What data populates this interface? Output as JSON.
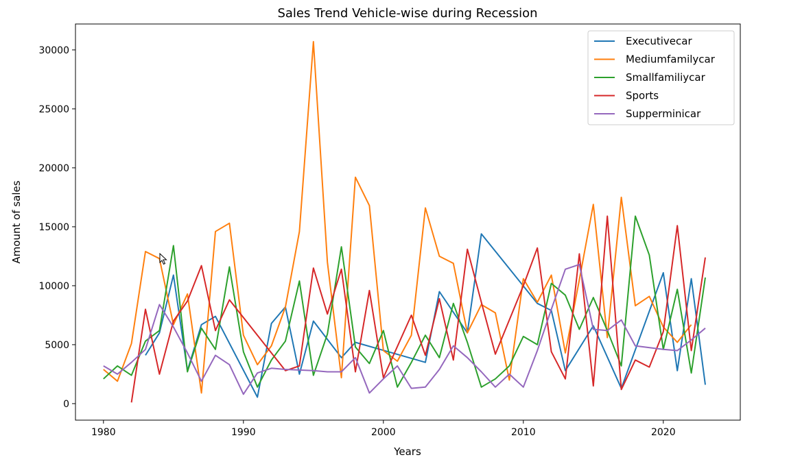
{
  "chart_data": {
    "type": "line",
    "title": "Sales Trend Vehicle-wise during Recession",
    "xlabel": "Years",
    "ylabel": "Amount of sales",
    "xlim": [
      1978,
      2025.5
    ],
    "ylim": [
      -1400,
      32200
    ],
    "xticks": [
      1980,
      1990,
      2000,
      2010,
      2020
    ],
    "yticks": [
      0,
      5000,
      10000,
      15000,
      20000,
      25000,
      30000
    ],
    "grid": false,
    "legend_position": "top-right",
    "series": [
      {
        "name": "Executivecar",
        "color": "#1f77b4",
        "points": [
          [
            1983,
            4100
          ],
          [
            1984,
            6000
          ],
          [
            1985,
            10900
          ],
          [
            1986,
            2800
          ],
          [
            1987,
            6700
          ],
          [
            1988,
            7400
          ],
          [
            1991,
            550
          ],
          [
            1992,
            6800
          ],
          [
            1993,
            8200
          ],
          [
            1994,
            2500
          ],
          [
            1995,
            7000
          ],
          [
            1997,
            3900
          ],
          [
            1998,
            5200
          ],
          [
            2003,
            3500
          ],
          [
            2004,
            9500
          ],
          [
            2006,
            6000
          ],
          [
            2007,
            14400
          ],
          [
            2011,
            8500
          ],
          [
            2012,
            7900
          ],
          [
            2013,
            2800
          ],
          [
            2015,
            6600
          ],
          [
            2017,
            1300
          ],
          [
            2020,
            11100
          ],
          [
            2021,
            2800
          ],
          [
            2022,
            10600
          ],
          [
            2023,
            1600
          ]
        ]
      },
      {
        "name": "Mediumfamilycar",
        "color": "#ff7f0e",
        "points": [
          [
            1980,
            2900
          ],
          [
            1981,
            1900
          ],
          [
            1982,
            5100
          ],
          [
            1983,
            12900
          ],
          [
            1984,
            12300
          ],
          [
            1985,
            6700
          ],
          [
            1986,
            9300
          ],
          [
            1987,
            900
          ],
          [
            1988,
            14600
          ],
          [
            1989,
            15300
          ],
          [
            1990,
            5800
          ],
          [
            1991,
            3300
          ],
          [
            1992,
            4900
          ],
          [
            1993,
            8200
          ],
          [
            1994,
            14600
          ],
          [
            1995,
            30700
          ],
          [
            1996,
            12000
          ],
          [
            1997,
            2200
          ],
          [
            1998,
            19200
          ],
          [
            1999,
            16800
          ],
          [
            2000,
            4500
          ],
          [
            2001,
            3600
          ],
          [
            2002,
            5800
          ],
          [
            2003,
            16600
          ],
          [
            2004,
            12500
          ],
          [
            2005,
            11900
          ],
          [
            2006,
            6000
          ],
          [
            2007,
            8400
          ],
          [
            2008,
            7700
          ],
          [
            2009,
            2000
          ],
          [
            2010,
            10600
          ],
          [
            2011,
            8600
          ],
          [
            2012,
            10900
          ],
          [
            2013,
            4300
          ],
          [
            2014,
            10500
          ],
          [
            2015,
            16900
          ],
          [
            2016,
            5600
          ],
          [
            2017,
            17500
          ],
          [
            2018,
            8300
          ],
          [
            2019,
            9100
          ],
          [
            2020,
            6500
          ],
          [
            2021,
            5200
          ],
          [
            2022,
            6700
          ]
        ]
      },
      {
        "name": "Smallfamiliycar",
        "color": "#2ca02c",
        "points": [
          [
            1980,
            2100
          ],
          [
            1981,
            3200
          ],
          [
            1982,
            2400
          ],
          [
            1983,
            5300
          ],
          [
            1984,
            6200
          ],
          [
            1985,
            13400
          ],
          [
            1986,
            2700
          ],
          [
            1987,
            6400
          ],
          [
            1988,
            4600
          ],
          [
            1989,
            11600
          ],
          [
            1990,
            4400
          ],
          [
            1991,
            1400
          ],
          [
            1992,
            3700
          ],
          [
            1993,
            5300
          ],
          [
            1994,
            10400
          ],
          [
            1995,
            2400
          ],
          [
            1996,
            5900
          ],
          [
            1997,
            13300
          ],
          [
            1998,
            4800
          ],
          [
            1999,
            3400
          ],
          [
            2000,
            6200
          ],
          [
            2001,
            1400
          ],
          [
            2002,
            3500
          ],
          [
            2003,
            5800
          ],
          [
            2004,
            3900
          ],
          [
            2005,
            8500
          ],
          [
            2006,
            5200
          ],
          [
            2007,
            1400
          ],
          [
            2008,
            2100
          ],
          [
            2009,
            3200
          ],
          [
            2010,
            5700
          ],
          [
            2011,
            5000
          ],
          [
            2012,
            10200
          ],
          [
            2013,
            9200
          ],
          [
            2014,
            6300
          ],
          [
            2015,
            9000
          ],
          [
            2016,
            6200
          ],
          [
            2017,
            3200
          ],
          [
            2018,
            15900
          ],
          [
            2019,
            12600
          ],
          [
            2020,
            4600
          ],
          [
            2021,
            9700
          ],
          [
            2022,
            2600
          ],
          [
            2023,
            10700
          ]
        ]
      },
      {
        "name": "Sports",
        "color": "#d62728",
        "points": [
          [
            1982,
            100
          ],
          [
            1983,
            8000
          ],
          [
            1984,
            2500
          ],
          [
            1985,
            7000
          ],
          [
            1986,
            8700
          ],
          [
            1987,
            11700
          ],
          [
            1988,
            6200
          ],
          [
            1989,
            8800
          ],
          [
            1993,
            2800
          ],
          [
            1994,
            3200
          ],
          [
            1995,
            11500
          ],
          [
            1996,
            7600
          ],
          [
            1997,
            11400
          ],
          [
            1998,
            2700
          ],
          [
            1999,
            9600
          ],
          [
            2000,
            2200
          ],
          [
            2002,
            7500
          ],
          [
            2003,
            4100
          ],
          [
            2004,
            8900
          ],
          [
            2005,
            3700
          ],
          [
            2006,
            13100
          ],
          [
            2007,
            8600
          ],
          [
            2008,
            4200
          ],
          [
            2010,
            10000
          ],
          [
            2011,
            13200
          ],
          [
            2012,
            4400
          ],
          [
            2013,
            2100
          ],
          [
            2014,
            12700
          ],
          [
            2015,
            1500
          ],
          [
            2016,
            15900
          ],
          [
            2017,
            1200
          ],
          [
            2018,
            3700
          ],
          [
            2019,
            3100
          ],
          [
            2020,
            6100
          ],
          [
            2021,
            15100
          ],
          [
            2022,
            4500
          ],
          [
            2023,
            12400
          ]
        ]
      },
      {
        "name": "Supperminicar",
        "color": "#9467bd",
        "points": [
          [
            1980,
            3200
          ],
          [
            1981,
            2500
          ],
          [
            1982,
            3500
          ],
          [
            1983,
            4600
          ],
          [
            1984,
            8400
          ],
          [
            1985,
            6500
          ],
          [
            1986,
            4300
          ],
          [
            1987,
            1900
          ],
          [
            1988,
            4100
          ],
          [
            1989,
            3300
          ],
          [
            1990,
            800
          ],
          [
            1991,
            2600
          ],
          [
            1992,
            3000
          ],
          [
            1993,
            2900
          ],
          [
            1995,
            2800
          ],
          [
            1996,
            2700
          ],
          [
            1997,
            2700
          ],
          [
            1998,
            3900
          ],
          [
            1999,
            900
          ],
          [
            2000,
            2100
          ],
          [
            2001,
            3200
          ],
          [
            2002,
            1300
          ],
          [
            2003,
            1400
          ],
          [
            2004,
            2900
          ],
          [
            2005,
            4900
          ],
          [
            2006,
            3900
          ],
          [
            2007,
            2700
          ],
          [
            2008,
            1400
          ],
          [
            2009,
            2500
          ],
          [
            2010,
            1400
          ],
          [
            2011,
            4500
          ],
          [
            2012,
            8000
          ],
          [
            2013,
            11400
          ],
          [
            2014,
            11800
          ],
          [
            2015,
            6300
          ],
          [
            2016,
            6200
          ],
          [
            2017,
            7100
          ],
          [
            2018,
            4900
          ],
          [
            2020,
            4600
          ],
          [
            2021,
            4500
          ],
          [
            2022,
            5400
          ],
          [
            2023,
            6400
          ]
        ]
      }
    ]
  }
}
